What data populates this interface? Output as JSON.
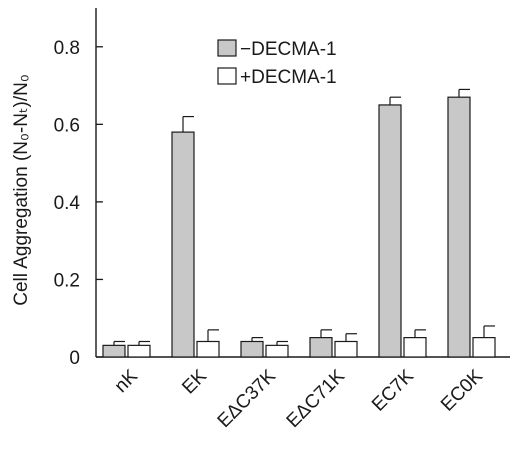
{
  "chart_data": {
    "type": "bar",
    "ylabel": "Cell Aggregation  (N₀-Nₜ)/N₀",
    "ylim": [
      0,
      0.9
    ],
    "yticks": [
      0,
      0.2,
      0.4,
      0.6,
      0.8
    ],
    "ytick_labels": [
      "0",
      "0.2",
      "0.4",
      "0.6",
      "0.8"
    ],
    "categories": [
      "nK",
      "EK",
      "EΔC37K",
      "EΔC71K",
      "EC7K",
      "EC0K"
    ],
    "series": [
      {
        "name": "−DECMA-1",
        "color": "#c8c8c8",
        "values": [
          0.03,
          0.58,
          0.04,
          0.05,
          0.65,
          0.67
        ],
        "errors": [
          0.01,
          0.04,
          0.01,
          0.02,
          0.02,
          0.02
        ]
      },
      {
        "name": "+DECMA-1",
        "color": "#ffffff",
        "values": [
          0.03,
          0.04,
          0.03,
          0.04,
          0.05,
          0.05
        ],
        "errors": [
          0.01,
          0.03,
          0.01,
          0.02,
          0.02,
          0.03
        ]
      }
    ],
    "legend_position": "top"
  }
}
